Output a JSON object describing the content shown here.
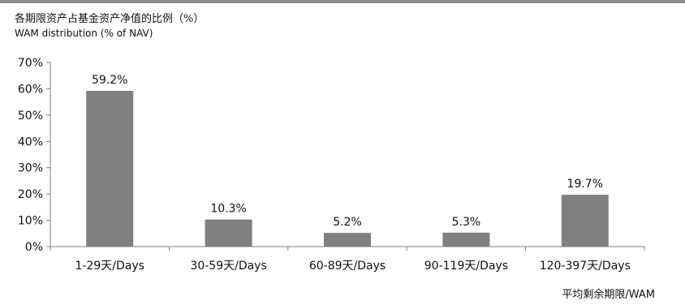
{
  "title_cn": "各期限资产占基金资产净值的比例（%）",
  "title_en": "WAM  distribution (% of NAV)",
  "colors": {
    "bar": "#808080",
    "axis": "#7f7f7f",
    "top_rule": "#8c8c8c"
  },
  "chart_data": {
    "type": "bar",
    "categories": [
      "1-29天/Days",
      "30-59天/Days",
      "60-89天/Days",
      "90-119天/Days",
      "120-397天/Days"
    ],
    "values": [
      59.2,
      10.3,
      5.2,
      5.3,
      19.7
    ],
    "value_labels": [
      "59.2%",
      "10.3%",
      "5.2%",
      "5.3%",
      "19.7%"
    ],
    "yticks": [
      0,
      10,
      20,
      30,
      40,
      50,
      60,
      70
    ],
    "ytick_labels": [
      "0%",
      "10%",
      "20%",
      "30%",
      "40%",
      "50%",
      "60%",
      "70%"
    ],
    "ylim": [
      0,
      70
    ],
    "xlabel": "平均剩余期限/WAM",
    "ylabel": "",
    "grid": false,
    "legend": "none"
  }
}
